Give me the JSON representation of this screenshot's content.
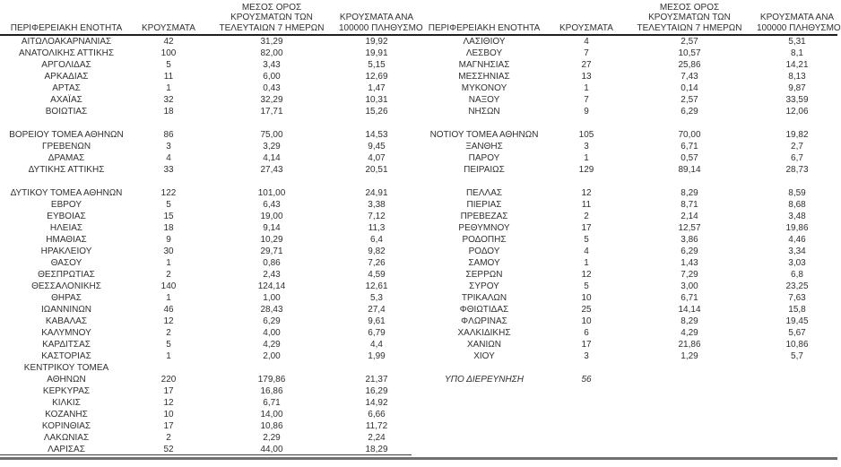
{
  "colors": {
    "background": "#ffffff",
    "text": "#303030",
    "header_rule": "#1f1f1f",
    "left_table_bottom_rule": "#3c3c3c",
    "bottom_rule": "#6f6f6f"
  },
  "tables": [
    {
      "name": "regional-table-left",
      "headers": [
        "ΠΕΡΙΦΕΡΕΙΑΚΗ ΕΝΟΤΗΤΑ",
        "ΚΡΟΥΣΜΑΤΑ",
        "ΜΕΣΟΣ ΟΡΟΣ\nΚΡΟΥΣΜΑΤΩΝ ΤΩΝ\nΤΕΛΕΥΤΑΙΩΝ 7 ΗΜΕΡΩΝ",
        "ΚΡΟΥΣΜΑΤΑ ΑΝΑ\n100000 ΠΛΗΘΥΣΜΟ"
      ],
      "italic_row_indexes": [],
      "rows": [
        [
          "ΑΙΤΩΛΟΑΚΑΡΝΑΝΙΑΣ",
          "42",
          "31,29",
          "19,92"
        ],
        [
          "ΑΝΑΤΟΛΙΚΗΣ ΑΤΤΙΚΗΣ",
          "100",
          "82,00",
          "19,91"
        ],
        [
          "ΑΡΓΟΛΙΔΑΣ",
          "5",
          "3,43",
          "5,15"
        ],
        [
          "ΑΡΚΑΔΙΑΣ",
          "11",
          "6,00",
          "12,69"
        ],
        [
          "ΑΡΤΑΣ",
          "1",
          "0,43",
          "1,47"
        ],
        [
          "ΑΧΑΪΑΣ",
          "32",
          "32,29",
          "10,31"
        ],
        [
          "ΒΟΙΩΤΙΑΣ",
          "18",
          "17,71",
          "15,26"
        ],
        [
          "",
          "",
          "",
          ""
        ],
        [
          "ΒΟΡΕΙΟΥ ΤΟΜΕΑ ΑΘΗΝΩΝ",
          "86",
          "75,00",
          "14,53"
        ],
        [
          "ΓΡΕΒΕΝΩΝ",
          "3",
          "3,29",
          "9,45"
        ],
        [
          "ΔΡΑΜΑΣ",
          "4",
          "4,14",
          "4,07"
        ],
        [
          "ΔΥΤΙΚΗΣ ΑΤΤΙΚΗΣ",
          "33",
          "27,43",
          "20,51"
        ],
        [
          "",
          "",
          "",
          ""
        ],
        [
          "ΔΥΤΙΚΟΥ ΤΟΜΕΑ ΑΘΗΝΩΝ",
          "122",
          "101,00",
          "24,91"
        ],
        [
          "ΕΒΡΟΥ",
          "5",
          "6,43",
          "3,38"
        ],
        [
          "ΕΥΒΟΙΑΣ",
          "15",
          "19,00",
          "7,12"
        ],
        [
          "ΗΛΕΙΑΣ",
          "18",
          "9,14",
          "11,3"
        ],
        [
          "ΗΜΑΘΙΑΣ",
          "9",
          "10,29",
          "6,4"
        ],
        [
          "ΗΡΑΚΛΕΙΟΥ",
          "30",
          "29,71",
          "9,82"
        ],
        [
          "ΘΑΣΟΥ",
          "1",
          "0,86",
          "7,26"
        ],
        [
          "ΘΕΣΠΡΩΤΙΑΣ",
          "2",
          "2,43",
          "4,59"
        ],
        [
          "ΘΕΣΣΑΛΟΝΙΚΗΣ",
          "140",
          "124,14",
          "12,61"
        ],
        [
          "ΘΗΡΑΣ",
          "1",
          "1,00",
          "5,3"
        ],
        [
          "ΙΩΑΝΝΙΝΩΝ",
          "46",
          "28,43",
          "27,4"
        ],
        [
          "ΚΑΒΑΛΑΣ",
          "12",
          "6,29",
          "9,61"
        ],
        [
          "ΚΑΛΥΜΝΟΥ",
          "2",
          "4,00",
          "6,79"
        ],
        [
          "ΚΑΡΔΙΤΣΑΣ",
          "5",
          "4,29",
          "4,4"
        ],
        [
          "ΚΑΣΤΟΡΙΑΣ",
          "1",
          "2,00",
          "1,99"
        ],
        [
          "ΚΕΝΤΡΙΚΟΥ ΤΟΜΕΑ",
          "",
          "",
          ""
        ],
        [
          "ΑΘΗΝΩΝ",
          "220",
          "179,86",
          "21,37"
        ],
        [
          "ΚΕΡΚΥΡΑΣ",
          "17",
          "16,86",
          "16,29"
        ],
        [
          "ΚΙΛΚΙΣ",
          "12",
          "6,71",
          "14,92"
        ],
        [
          "ΚΟΖΑΝΗΣ",
          "10",
          "14,00",
          "6,66"
        ],
        [
          "ΚΟΡΙΝΘΙΑΣ",
          "17",
          "10,86",
          "11,72"
        ],
        [
          "ΛΑΚΩΝΙΑΣ",
          "2",
          "2,29",
          "2,24"
        ],
        [
          "ΛΑΡΙΣΑΣ",
          "52",
          "44,00",
          "18,29"
        ]
      ]
    },
    {
      "name": "regional-table-right",
      "headers": [
        "ΠΕΡΙΦΕΡΕΙΑΚΗ ΕΝΟΤΗΤΑ",
        "ΚΡΟΥΣΜΑΤΑ",
        "ΜΕΣΟΣ ΟΡΟΣ\nΚΡΟΥΣΜΑΤΩΝ ΤΩΝ\nΤΕΛΕΥΤΑΙΩΝ 7 ΗΜΕΡΩΝ",
        "ΚΡΟΥΣΜΑΤΑ ΑΝΑ\n100000 ΠΛΗΘΥΣΜΟ"
      ],
      "italic_row_indexes": [
        29
      ],
      "rows": [
        [
          "ΛΑΣΙΘΙΟΥ",
          "4",
          "2,57",
          "5,31"
        ],
        [
          "ΛΕΣΒΟΥ",
          "7",
          "10,57",
          "8,1"
        ],
        [
          "ΜΑΓΝΗΣΙΑΣ",
          "27",
          "25,86",
          "14,21"
        ],
        [
          "ΜΕΣΣΗΝΙΑΣ",
          "13",
          "7,43",
          "8,13"
        ],
        [
          "ΜΥΚΟΝΟΥ",
          "1",
          "0,14",
          "9,87"
        ],
        [
          "ΝΑΞΟΥ",
          "7",
          "2,57",
          "33,59"
        ],
        [
          "ΝΗΣΩΝ",
          "9",
          "6,29",
          "12,06"
        ],
        [
          "",
          "",
          "",
          ""
        ],
        [
          "ΝΟΤΙΟΥ ΤΟΜΕΑ ΑΘΗΝΩΝ",
          "105",
          "70,00",
          "19,82"
        ],
        [
          "ΞΑΝΘΗΣ",
          "3",
          "6,71",
          "2,7"
        ],
        [
          "ΠΑΡΟΥ",
          "1",
          "0,57",
          "6,7"
        ],
        [
          "ΠΕΙΡΑΙΩΣ",
          "129",
          "89,14",
          "28,73"
        ],
        [
          "",
          "",
          "",
          ""
        ],
        [
          "ΠΕΛΛΑΣ",
          "12",
          "8,29",
          "8,59"
        ],
        [
          "ΠΙΕΡΙΑΣ",
          "11",
          "8,71",
          "8,68"
        ],
        [
          "ΠΡΕΒΕΖΑΣ",
          "2",
          "2,14",
          "3,48"
        ],
        [
          "ΡΕΘΥΜΝΟΥ",
          "17",
          "12,57",
          "19,86"
        ],
        [
          "ΡΟΔΟΠΗΣ",
          "5",
          "3,86",
          "4,46"
        ],
        [
          "ΡΟΔΟΥ",
          "4",
          "6,29",
          "3,34"
        ],
        [
          "ΣΑΜΟΥ",
          "1",
          "1,43",
          "3,03"
        ],
        [
          "ΣΕΡΡΩΝ",
          "12",
          "7,29",
          "6,8"
        ],
        [
          "ΣΥΡΟΥ",
          "5",
          "3,00",
          "23,25"
        ],
        [
          "ΤΡΙΚΑΛΩΝ",
          "10",
          "6,71",
          "7,63"
        ],
        [
          "ΦΘΙΩΤΙΔΑΣ",
          "25",
          "14,14",
          "15,8"
        ],
        [
          "ΦΛΩΡΙΝΑΣ",
          "10",
          "8,29",
          "19,45"
        ],
        [
          "ΧΑΛΚΙΔΙΚΗΣ",
          "6",
          "4,29",
          "5,67"
        ],
        [
          "ΧΑΝΙΩΝ",
          "17",
          "21,86",
          "10,86"
        ],
        [
          "ΧΙΟΥ",
          "3",
          "1,29",
          "5,7"
        ],
        [
          "",
          "",
          "",
          ""
        ],
        [
          "ΥΠΟ ΔΙΕΡΕΥΝΗΣΗ",
          "56",
          "",
          ""
        ]
      ]
    }
  ]
}
